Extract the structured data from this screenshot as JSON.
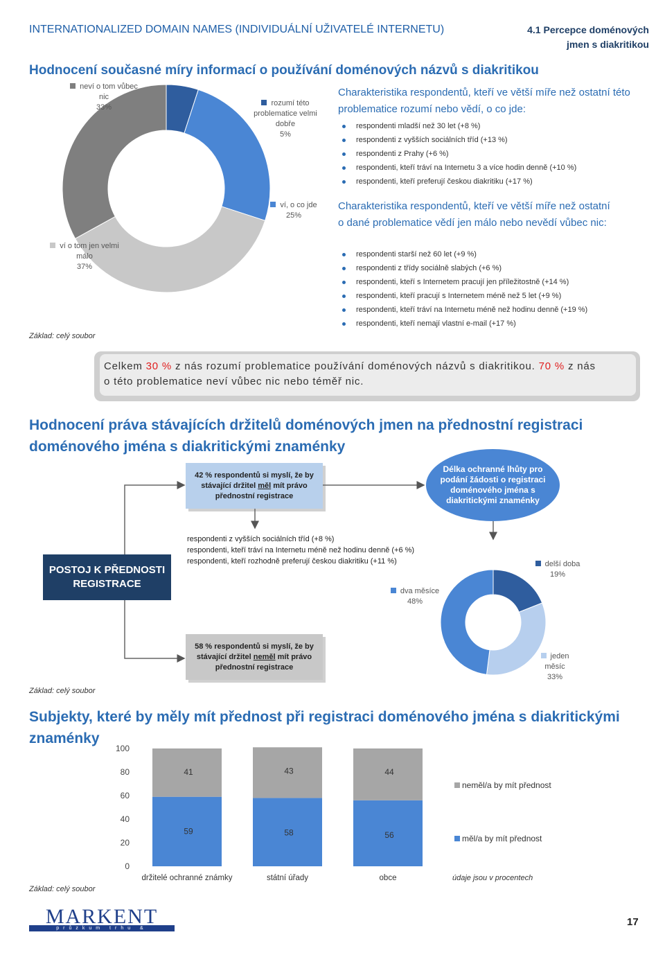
{
  "header": {
    "title": "INTERNATIONALIZED DOMAIN NAMES (INDIVIDUÁLNÍ UŽIVATELÉ INTERNETU)",
    "section": [
      "4.1 Percepce doménových",
      "jmen s diakritikou"
    ]
  },
  "awareness": {
    "heading": "Hodnocení současné míry informací o používání doménových názvů s diakritikou",
    "chart": {
      "type": "donut",
      "labels": [
        "rozumí této problematice velmi dobře",
        "ví, o co jde",
        "ví o tom jen velmi málo",
        "neví o tom vůbec nic"
      ],
      "values": [
        5,
        25,
        37,
        33
      ],
      "value_labels": [
        "5%",
        "25%",
        "37%",
        "33%"
      ],
      "colors": [
        "#2f5d9e",
        "#4a86d4",
        "#c8c8c8",
        "#7f7f7f"
      ]
    },
    "informed": {
      "heading": "Charakteristika respondentů, kteří ve větší míře než ostatní této problematice rozumí nebo vědí, o co jde:",
      "items": [
        "respondenti mladší než 30 let (+8 %)",
        "respondenti z vyšších sociálních tříd (+13 %)",
        "respondenti z Prahy (+6 %)",
        "respondenti, kteří tráví na Internetu 3 a více hodin denně (+10 %)",
        "respondenti, kteří preferují českou diakritiku (+17 %)"
      ]
    },
    "uninformed": {
      "heading": "Charakteristika respondentů, kteří ve větší míře než ostatní o dané problematice vědí jen málo nebo nevědí vůbec nic:",
      "items": [
        "respondenti starší než 60 let (+9 %)",
        "respondenti z třídy sociálně slabých (+6 %)",
        "respondenti, kteří s Internetem pracují jen příležitostně (+14 %)",
        "respondenti, kteří pracují s Internetem méně než 5 let (+9 %)",
        "respondenti, kteří tráví na Internetu méně než hodinu denně (+19 %)",
        "respondenti, kteří nemají vlastní e-mail (+17 %)"
      ]
    },
    "base": "Základ: celý soubor"
  },
  "summary": {
    "parts": [
      "Celkem ",
      "30 %",
      " z nás rozumí problematice používání doménových názvů s diakritikou. ",
      "70 %",
      " z nás o této problematice neví vůbec nic nebo téměř nic."
    ]
  },
  "priority": {
    "heading": "Hodnocení práva stávajících držitelů doménových jmen na přednostní registraci doménového jména s diakritickými znaménky",
    "yes_box": [
      "42 % respondentů si myslí, že by stávající držitel ",
      "měl",
      " mít právo přednostní registrace"
    ],
    "yes_items": [
      "respondenti z vyšších sociálních tříd (+8 %)",
      "respondenti, kteří tráví na Internetu méně než hodinu denně (+6 %)",
      "respondenti, kteří rozhodně preferují českou diakritiku (+11 %)"
    ],
    "attitude": "POSTOJ K PŘEDNOSTI REGISTRACE",
    "period_question": "Délka ochranné lhůty pro podání žádosti o registraci doménového jména s diakritickými znaménky",
    "no_box": [
      "58 % respondentů si myslí, že by stávající držitel ",
      "neměl",
      " mít právo přednostní registrace"
    ],
    "chart": {
      "type": "donut",
      "labels": [
        "delší doba",
        "jeden měsíc",
        "dva měsíce"
      ],
      "values": [
        19,
        33,
        48
      ],
      "value_labels": [
        "19%",
        "33%",
        "48%"
      ],
      "colors": [
        "#2f5d9e",
        "#b7cfee",
        "#4a86d4"
      ]
    },
    "base": "Základ: celý soubor"
  },
  "subjects": {
    "heading": "Subjekty, které by měly mít přednost při registraci doménového jména s diakritickými znaménky",
    "chart": {
      "type": "bar",
      "stacked": true,
      "categories": [
        "držitelé ochranné známky",
        "státní úřady",
        "obce"
      ],
      "series": [
        {
          "name": "měl/a by mít přednost",
          "color": "#4a86d4",
          "values": [
            59,
            58,
            56
          ]
        },
        {
          "name": "neměl/a by mít přednost",
          "color": "#a6a6a6",
          "values": [
            41,
            43,
            44
          ]
        }
      ],
      "ylim": [
        0,
        100
      ],
      "yticks": [
        0,
        20,
        40,
        60,
        80,
        100
      ]
    },
    "note": "údaje jsou v procentech",
    "base": "Základ: celý soubor"
  },
  "footer": {
    "logo": "MARKENT",
    "tagline": "průzkum trhu & marketing",
    "page": "17"
  }
}
